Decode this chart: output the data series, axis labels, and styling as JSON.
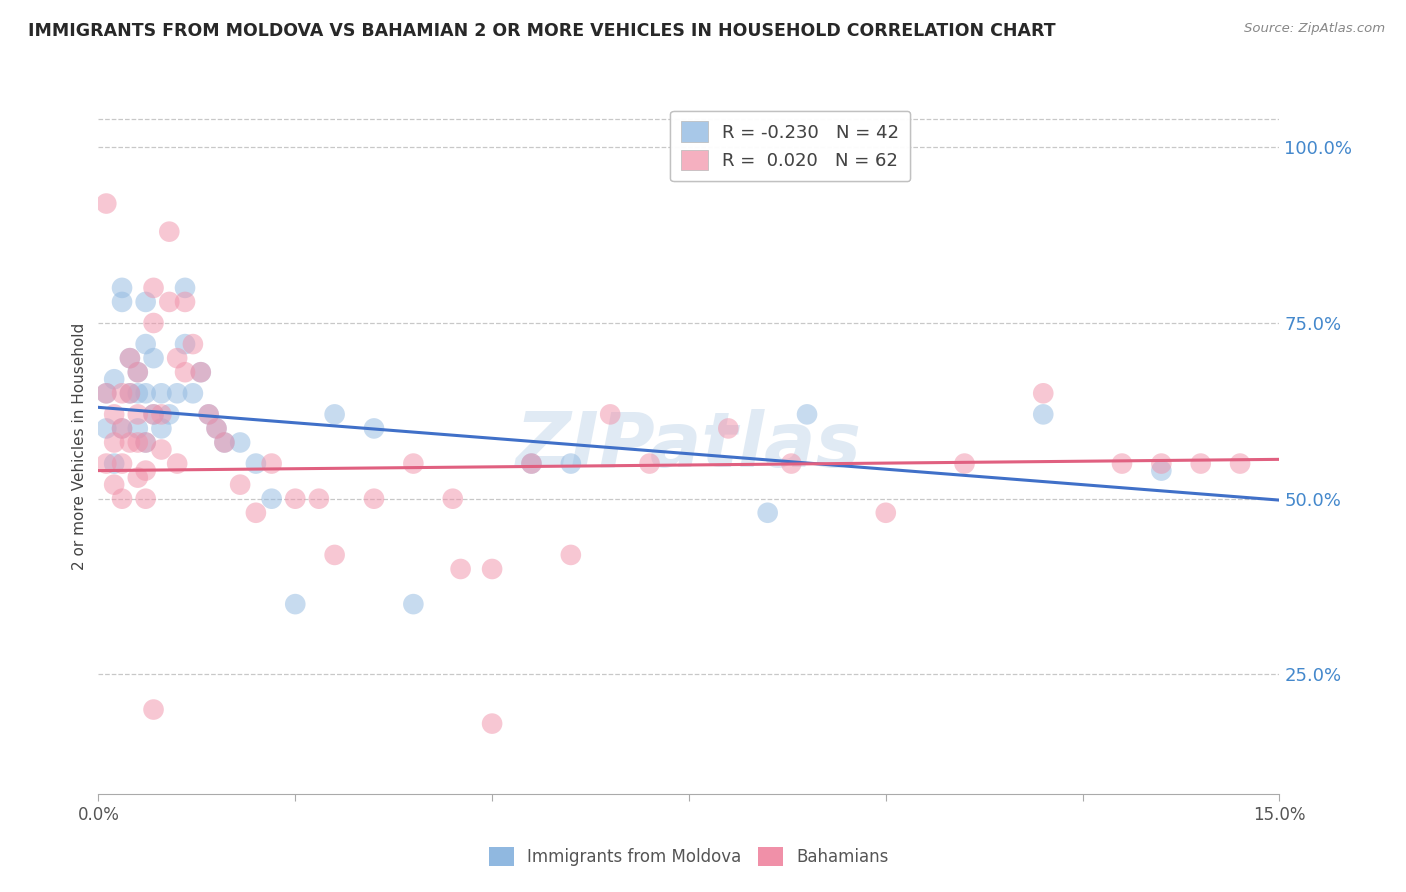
{
  "title": "IMMIGRANTS FROM MOLDOVA VS BAHAMIAN 2 OR MORE VEHICLES IN HOUSEHOLD CORRELATION CHART",
  "source": "Source: ZipAtlas.com",
  "ylabel": "2 or more Vehicles in Household",
  "ytick_labels": [
    "100.0%",
    "75.0%",
    "50.0%",
    "25.0%"
  ],
  "ytick_values": [
    1.0,
    0.75,
    0.5,
    0.25
  ],
  "xlim": [
    0.0,
    0.15
  ],
  "ylim": [
    0.08,
    1.07
  ],
  "legend_entries": [
    {
      "label": "R = -0.230   N = 42",
      "color": "#a8c8e8"
    },
    {
      "label": "R =  0.020   N = 62",
      "color": "#f5b0c0"
    }
  ],
  "series1_color": "#90b8e0",
  "series2_color": "#f090a8",
  "trendline1_color": "#4070c8",
  "trendline2_color": "#e06080",
  "background_color": "#ffffff",
  "grid_color": "#c8c8c8",
  "title_color": "#282828",
  "source_color": "#888888",
  "right_axis_color": "#4488cc",
  "watermark": "ZIPatlas",
  "series1_x": [
    0.001,
    0.001,
    0.002,
    0.002,
    0.003,
    0.003,
    0.003,
    0.004,
    0.004,
    0.005,
    0.005,
    0.005,
    0.006,
    0.006,
    0.006,
    0.006,
    0.007,
    0.007,
    0.008,
    0.008,
    0.009,
    0.01,
    0.011,
    0.011,
    0.012,
    0.013,
    0.014,
    0.015,
    0.016,
    0.018,
    0.02,
    0.022,
    0.025,
    0.03,
    0.035,
    0.04,
    0.055,
    0.06,
    0.085,
    0.09,
    0.12,
    0.135
  ],
  "series1_y": [
    0.65,
    0.6,
    0.67,
    0.55,
    0.8,
    0.78,
    0.6,
    0.7,
    0.65,
    0.68,
    0.65,
    0.6,
    0.78,
    0.72,
    0.65,
    0.58,
    0.7,
    0.62,
    0.65,
    0.6,
    0.62,
    0.65,
    0.8,
    0.72,
    0.65,
    0.68,
    0.62,
    0.6,
    0.58,
    0.58,
    0.55,
    0.5,
    0.35,
    0.62,
    0.6,
    0.35,
    0.55,
    0.55,
    0.48,
    0.62,
    0.62,
    0.54
  ],
  "series2_x": [
    0.001,
    0.001,
    0.001,
    0.002,
    0.002,
    0.002,
    0.003,
    0.003,
    0.003,
    0.003,
    0.004,
    0.004,
    0.004,
    0.005,
    0.005,
    0.005,
    0.005,
    0.006,
    0.006,
    0.006,
    0.007,
    0.007,
    0.007,
    0.008,
    0.008,
    0.009,
    0.009,
    0.01,
    0.01,
    0.011,
    0.011,
    0.012,
    0.013,
    0.014,
    0.015,
    0.016,
    0.018,
    0.02,
    0.022,
    0.025,
    0.028,
    0.03,
    0.035,
    0.04,
    0.045,
    0.05,
    0.055,
    0.06,
    0.065,
    0.07,
    0.08,
    0.088,
    0.1,
    0.11,
    0.12,
    0.13,
    0.135,
    0.14,
    0.145,
    0.007,
    0.046,
    0.05
  ],
  "series2_y": [
    0.92,
    0.65,
    0.55,
    0.62,
    0.58,
    0.52,
    0.65,
    0.6,
    0.55,
    0.5,
    0.7,
    0.65,
    0.58,
    0.68,
    0.62,
    0.58,
    0.53,
    0.58,
    0.54,
    0.5,
    0.8,
    0.75,
    0.62,
    0.62,
    0.57,
    0.88,
    0.78,
    0.7,
    0.55,
    0.78,
    0.68,
    0.72,
    0.68,
    0.62,
    0.6,
    0.58,
    0.52,
    0.48,
    0.55,
    0.5,
    0.5,
    0.42,
    0.5,
    0.55,
    0.5,
    0.4,
    0.55,
    0.42,
    0.62,
    0.55,
    0.6,
    0.55,
    0.48,
    0.55,
    0.65,
    0.55,
    0.55,
    0.55,
    0.55,
    0.2,
    0.4,
    0.18
  ],
  "trendline1_x0": 0.0,
  "trendline1_y0": 0.63,
  "trendline1_x1": 0.15,
  "trendline1_y1": 0.498,
  "trendline2_x0": 0.0,
  "trendline2_y0": 0.54,
  "trendline2_x1": 0.15,
  "trendline2_y1": 0.556,
  "xtick_positions": [
    0.0,
    0.025,
    0.05,
    0.075,
    0.1,
    0.125,
    0.15
  ],
  "xtick_minor_positions": [
    0.0,
    0.015,
    0.03,
    0.045,
    0.06,
    0.075,
    0.09,
    0.105,
    0.12,
    0.135,
    0.15
  ]
}
